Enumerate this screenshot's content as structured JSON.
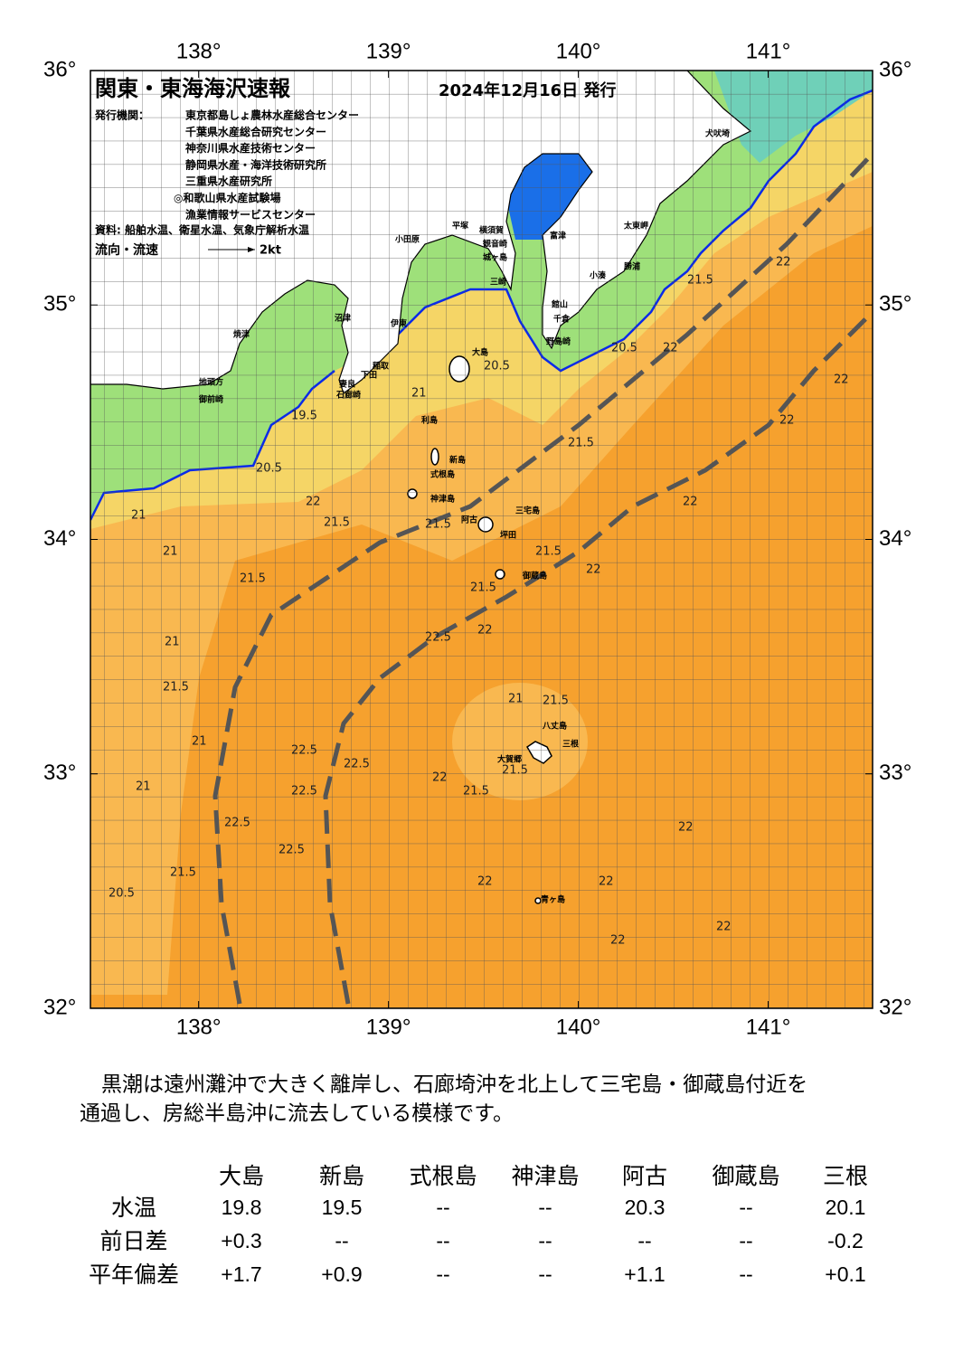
{
  "map": {
    "title": "関東・東海海沢速報",
    "issued": "2024年12月16日 発行",
    "publisher_label": "発行機関：",
    "publishers": [
      "東京都島しょ農林水産総合センター",
      "千葉県水産総合研究センター",
      "神奈川県水産技術センター",
      "静岡県水産・海洋技術研究所",
      "三重県水産研究所",
      "◎和歌山県水産試験場",
      "漁業情報サービスセンター"
    ],
    "source": "資料: 船舶水温、衛星水温、気象庁解析水温",
    "flow_legend": "流向・流速",
    "flow_unit": "2kt",
    "xlim": [
      137.43,
      141.55
    ],
    "ylim": [
      32,
      36
    ],
    "xticks": [
      {
        "value": 138,
        "label": "138°"
      },
      {
        "value": 139,
        "label": "139°"
      },
      {
        "value": 140,
        "label": "140°"
      },
      {
        "value": 141,
        "label": "141°"
      }
    ],
    "yticks": [
      {
        "value": 32,
        "label": "32°"
      },
      {
        "value": 33,
        "label": "33°"
      },
      {
        "value": 34,
        "label": "34°"
      },
      {
        "value": 35,
        "label": "35°"
      },
      {
        "value": 36,
        "label": "36°"
      }
    ],
    "places": [
      "犬吠埼",
      "太東岬",
      "勝浦",
      "小湊",
      "館山",
      "千倉",
      "野島崎",
      "富津",
      "横須賀",
      "観音崎",
      "城ヶ島",
      "三崎",
      "平塚",
      "小田原",
      "沼津",
      "伊東",
      "稲取",
      "下田",
      "妻良",
      "石廊崎",
      "焼津",
      "地頭方",
      "御前崎",
      "大島",
      "利島",
      "新島",
      "式根島",
      "神津島",
      "阿古",
      "三宅島",
      "坪田",
      "御蔵島",
      "八丈島",
      "三根",
      "大賀郷",
      "青ヶ島"
    ],
    "contour_labels": [
      20.5,
      19.5,
      21,
      22,
      21.5,
      21.5,
      21,
      21,
      21,
      21.5,
      21,
      21,
      22.5,
      22.5,
      22.5,
      22.5,
      20.5,
      21.5,
      22.5,
      22.5,
      22,
      21.5,
      21.5,
      21.5,
      22,
      21,
      21.5,
      22,
      21.5,
      21.5,
      22,
      22,
      22,
      22,
      22,
      22,
      21.5,
      20.5,
      20.5,
      22,
      21.5,
      22,
      22,
      22
    ]
  },
  "description": [
    "黒潮は遠州灘沖で大きく離岸し、石廊埼沖を北上して三宅島・御蔵島付近を",
    "通過し、房総半島沖に流去している模様です。"
  ],
  "table": {
    "columns": [
      "大島",
      "新島",
      "式根島",
      "神津島",
      "阿古",
      "御蔵島",
      "三根"
    ],
    "rows": [
      {
        "label": "水温",
        "cells": [
          "19.8",
          "19.5",
          "--",
          "--",
          "20.3",
          "--",
          "20.1"
        ]
      },
      {
        "label": "前日差",
        "cells": [
          "+0.3",
          "--",
          "--",
          "--",
          "--",
          "--",
          "-0.2"
        ]
      },
      {
        "label": "平年偏差",
        "cells": [
          "+1.7",
          "+0.9",
          "--",
          "--",
          "+1.1",
          "--",
          "+0.1"
        ]
      }
    ]
  }
}
